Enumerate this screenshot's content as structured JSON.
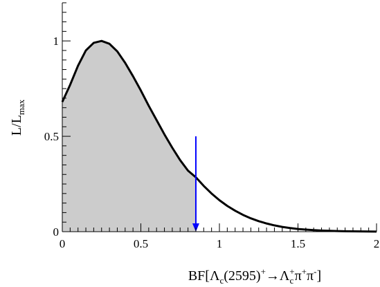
{
  "chart_data": {
    "type": "area",
    "title": "",
    "xlabel": {
      "prefix": "BF[Λ",
      "sub1": "c",
      "mid1": "(2595)",
      "sup1": "+",
      "arrow": "→Λ",
      "sub2": "c",
      "sup2": "+",
      "mid2": "π",
      "sup3": "+",
      "mid3": "π",
      "sup4": "-",
      "suffix": "]"
    },
    "ylabel": {
      "main": "L/L",
      "sub": "max"
    },
    "xlim": [
      0,
      2
    ],
    "ylim": [
      0,
      1.2
    ],
    "x_ticks": [
      {
        "value": 0,
        "label": "0"
      },
      {
        "value": 0.5,
        "label": "0.5"
      },
      {
        "value": 1,
        "label": "1"
      },
      {
        "value": 1.5,
        "label": "1.5"
      },
      {
        "value": 2,
        "label": "2"
      }
    ],
    "y_ticks": [
      {
        "value": 0,
        "label": "0"
      },
      {
        "value": 0.5,
        "label": "0.5"
      },
      {
        "value": 1,
        "label": "1"
      }
    ],
    "grid": false,
    "series": [
      {
        "x": [
          0,
          0.05,
          0.1,
          0.15,
          0.2,
          0.25,
          0.3,
          0.35,
          0.4,
          0.45,
          0.5,
          0.55,
          0.6,
          0.65,
          0.7,
          0.75,
          0.8,
          0.85,
          0.9,
          0.95,
          1.0,
          1.05,
          1.1,
          1.15,
          1.2,
          1.25,
          1.3,
          1.35,
          1.4,
          1.45,
          1.5,
          1.55,
          1.6,
          1.65,
          1.7,
          1.75,
          1.8,
          1.85,
          1.9,
          1.95,
          2.0
        ],
        "y": [
          0.68,
          0.77,
          0.87,
          0.95,
          0.99,
          1.0,
          0.985,
          0.945,
          0.885,
          0.815,
          0.74,
          0.66,
          0.585,
          0.51,
          0.44,
          0.375,
          0.32,
          0.285,
          0.24,
          0.2,
          0.165,
          0.135,
          0.11,
          0.088,
          0.07,
          0.055,
          0.043,
          0.033,
          0.025,
          0.019,
          0.014,
          0.011,
          0.008,
          0.006,
          0.0045,
          0.0033,
          0.0024,
          0.0017,
          0.0012,
          0.0008,
          0.0005
        ]
      }
    ],
    "shaded_region": {
      "x_from": 0,
      "x_to": 0.85,
      "color": "#cccccc"
    },
    "limit_arrow": {
      "x": 0.85,
      "y_from": 0.5,
      "y_to": 0,
      "color": "#0000ff"
    },
    "colors": {
      "curve": "#000000",
      "fill": "#cccccc",
      "arrow": "#0000ff"
    }
  }
}
